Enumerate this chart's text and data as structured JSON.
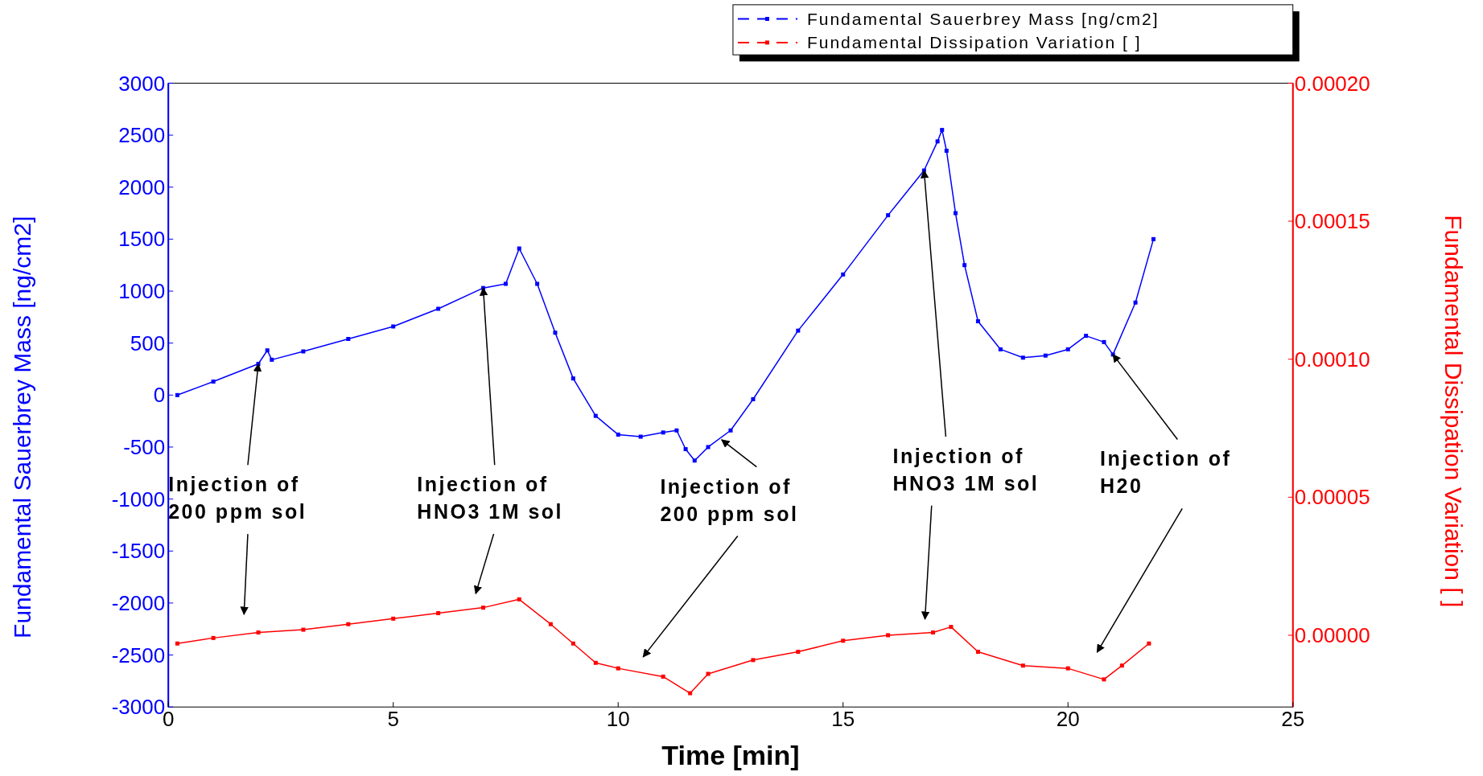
{
  "chart_data": {
    "type": "line",
    "xlabel": "Time [min]",
    "ylabel": "Fundamental Sauerbrey Mass [ng/cm2]",
    "y2label": "Fundamental Dissipation Variation [ ]",
    "xlim": [
      0,
      25
    ],
    "xticks": [
      0,
      5,
      10,
      15,
      20,
      25
    ],
    "ylim": [
      -3000,
      3000
    ],
    "yticks": [
      -3000,
      -2500,
      -2000,
      -1500,
      -1000,
      -500,
      0,
      500,
      1000,
      1500,
      2000,
      2500,
      3000
    ],
    "y2lim": [
      -2.6e-05,
      0.0002
    ],
    "y2ticks": [
      {
        "value": 0,
        "label": "0.00000"
      },
      {
        "value": 5e-05,
        "label": "0.00005"
      },
      {
        "value": 0.0001,
        "label": "0.00010"
      },
      {
        "value": 0.00015,
        "label": "0.00015"
      },
      {
        "value": 0.0002,
        "label": "0.00020"
      }
    ],
    "legend": "top right",
    "marker": "square",
    "line_style": "solid",
    "grid": false,
    "series": [
      {
        "name": "Fundamental Sauerbrey Mass [ng/cm2]",
        "color": "#0000ff",
        "x": [
          0.2,
          1,
          2,
          2.2,
          2.3,
          3,
          4,
          5,
          6,
          7,
          7.5,
          7.8,
          8.2,
          8.6,
          9,
          9.5,
          10,
          10.5,
          11,
          11.3,
          11.5,
          11.7,
          12,
          12.5,
          13,
          14,
          15,
          16,
          16.8,
          17.1,
          17.2,
          17.3,
          17.5,
          17.7,
          18,
          18.5,
          19,
          19.5,
          20,
          20.4,
          20.8,
          21,
          21.5,
          21.9
        ],
        "values": [
          0,
          130,
          300,
          430,
          340,
          420,
          540,
          660,
          830,
          1030,
          1070,
          1410,
          1070,
          600,
          160,
          -200,
          -380,
          -400,
          -360,
          -340,
          -520,
          -630,
          -500,
          -340,
          -40,
          620,
          1160,
          1730,
          2160,
          2440,
          2550,
          2350,
          1750,
          1250,
          710,
          440,
          360,
          380,
          440,
          570,
          510,
          390,
          890,
          1500
        ]
      },
      {
        "name": "Fundamental Dissipation Variation [ ]",
        "color": "#ff0000",
        "axis": "y2",
        "x": [
          0.2,
          1,
          2,
          3,
          4,
          5,
          6,
          7,
          7.8,
          8.5,
          9,
          9.5,
          10,
          11,
          11.6,
          12,
          13,
          14,
          15,
          16,
          17,
          17.4,
          18,
          19,
          20,
          20.8,
          21.2,
          21.8
        ],
        "values": [
          -3e-06,
          -1e-06,
          1e-06,
          2e-06,
          4e-06,
          6e-06,
          8e-06,
          1e-05,
          1.3e-05,
          4e-06,
          -3e-06,
          -1e-05,
          -1.2e-05,
          -1.5e-05,
          -2.1e-05,
          -1.4e-05,
          -9e-06,
          -6e-06,
          -2e-06,
          0,
          1e-06,
          3e-06,
          -6e-06,
          -1.1e-05,
          -1.2e-05,
          -1.6e-05,
          -1.1e-05,
          -3e-06
        ]
      }
    ],
    "annotations": [
      {
        "text": "Injection of\n200 ppm sol",
        "x": 2,
        "y": 300
      },
      {
        "text": "Injection of\nHNO3 1M sol",
        "x": 7,
        "y": 1030
      },
      {
        "text": "Injection of\n200 ppm sol",
        "x": 12.3,
        "y": -430
      },
      {
        "text": "Injection of\nHNO3 1M sol",
        "x": 16.8,
        "y": 2160
      },
      {
        "text": "Injection of\nH20",
        "x": 21,
        "y": 390
      }
    ]
  }
}
